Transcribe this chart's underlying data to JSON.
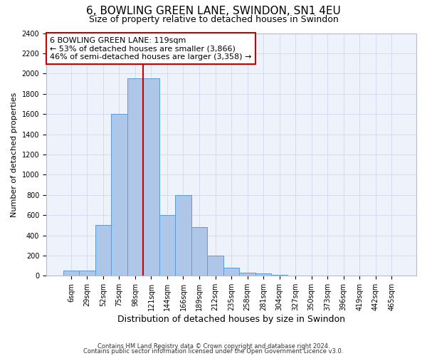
{
  "title": "6, BOWLING GREEN LANE, SWINDON, SN1 4EU",
  "subtitle": "Size of property relative to detached houses in Swindon",
  "xlabel": "Distribution of detached houses by size in Swindon",
  "ylabel": "Number of detached properties",
  "categories": [
    "6sqm",
    "29sqm",
    "52sqm",
    "75sqm",
    "98sqm",
    "121sqm",
    "144sqm",
    "166sqm",
    "189sqm",
    "212sqm",
    "235sqm",
    "258sqm",
    "281sqm",
    "304sqm",
    "327sqm",
    "350sqm",
    "373sqm",
    "396sqm",
    "419sqm",
    "442sqm",
    "465sqm"
  ],
  "values": [
    50,
    50,
    500,
    1600,
    1950,
    1950,
    600,
    800,
    480,
    200,
    80,
    30,
    25,
    12,
    0,
    0,
    0,
    0,
    0,
    0,
    0
  ],
  "bar_color": "#aec6e8",
  "bar_edge_color": "#5b9bd5",
  "vline_x_index": 4.5,
  "vline_color": "#cc0000",
  "annotation_text": "6 BOWLING GREEN LANE: 119sqm\n← 53% of detached houses are smaller (3,866)\n46% of semi-detached houses are larger (3,358) →",
  "annotation_box_color": "#ffffff",
  "annotation_box_edge": "#cc0000",
  "ylim": [
    0,
    2400
  ],
  "yticks": [
    0,
    200,
    400,
    600,
    800,
    1000,
    1200,
    1400,
    1600,
    1800,
    2000,
    2200,
    2400
  ],
  "background_color": "#edf2fb",
  "footer1": "Contains HM Land Registry data © Crown copyright and database right 2024.",
  "footer2": "Contains public sector information licensed under the Open Government Licence v3.0.",
  "title_fontsize": 11,
  "subtitle_fontsize": 9,
  "annotation_fontsize": 8,
  "ylabel_fontsize": 8,
  "xlabel_fontsize": 9,
  "tick_fontsize": 7,
  "footer_fontsize": 6
}
